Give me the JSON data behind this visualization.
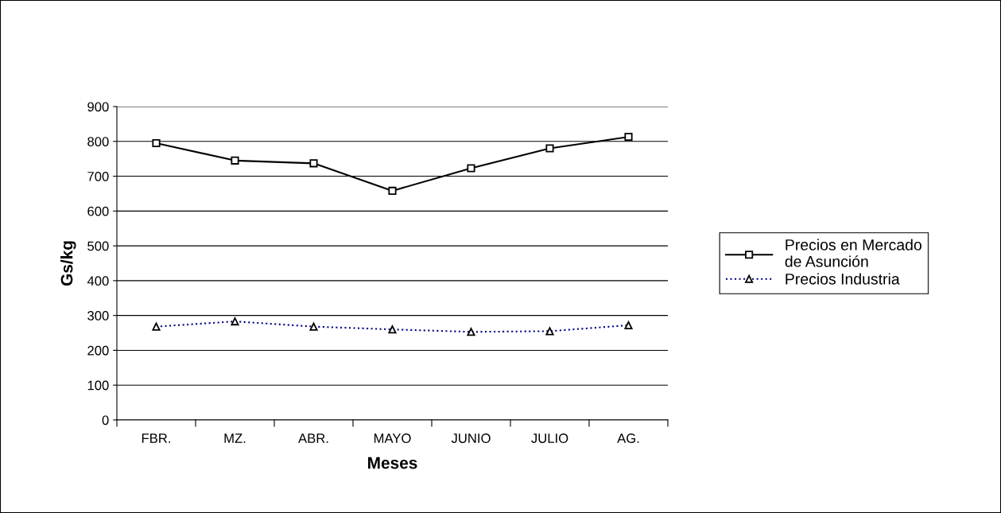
{
  "chart_data": {
    "type": "line",
    "xlabel": "Meses",
    "ylabel": "Gs/kg",
    "categories": [
      "FBR.",
      "MZ.",
      "ABR.",
      "MAYO",
      "JUNIO",
      "JULIO",
      "AG."
    ],
    "series": [
      {
        "name": "Precios en Mercado\nde Asunción",
        "color": "#000000",
        "marker": "square",
        "line_style": "solid",
        "values": [
          795,
          745,
          737,
          658,
          723,
          780,
          813
        ]
      },
      {
        "name": "Precios Industria",
        "color": "#000080",
        "marker": "triangle",
        "line_style": "dotted",
        "values": [
          268,
          283,
          268,
          260,
          253,
          255,
          272
        ]
      }
    ],
    "ylim": [
      0,
      900
    ],
    "yticks": [
      0,
      100,
      200,
      300,
      400,
      500,
      600,
      700,
      800,
      900
    ],
    "grid": "y",
    "legend": "right"
  }
}
